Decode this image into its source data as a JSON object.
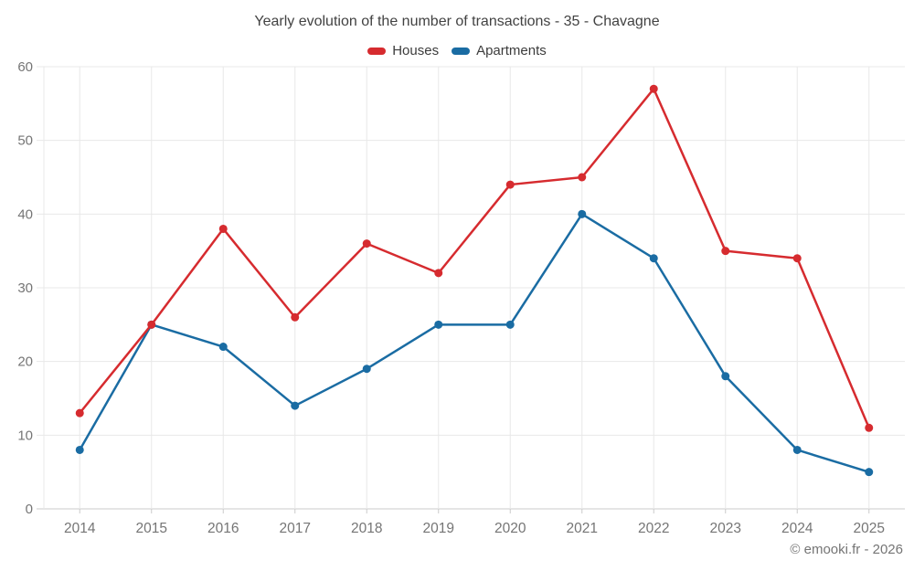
{
  "title": "Yearly evolution of the number of transactions - 35 - Chavagne",
  "footer": "© emooki.fr - 2026",
  "chart_data": {
    "type": "line",
    "title": "Yearly evolution of the number of transactions - 35 - Chavagne",
    "categories": [
      "2014",
      "2015",
      "2016",
      "2017",
      "2018",
      "2019",
      "2020",
      "2021",
      "2022",
      "2023",
      "2024",
      "2025"
    ],
    "series": [
      {
        "name": "Houses",
        "color": "#d62b2f",
        "values": [
          13,
          25,
          38,
          26,
          36,
          32,
          44,
          45,
          57,
          35,
          34,
          11
        ]
      },
      {
        "name": "Apartments",
        "color": "#1a6ca3",
        "values": [
          8,
          25,
          22,
          14,
          19,
          25,
          25,
          40,
          34,
          18,
          8,
          5
        ]
      }
    ],
    "xlabel": "",
    "ylabel": "",
    "ylim": [
      0,
      60
    ],
    "yticks": [
      0,
      10,
      20,
      30,
      40,
      50,
      60
    ],
    "grid": true,
    "legend_position": "top"
  }
}
